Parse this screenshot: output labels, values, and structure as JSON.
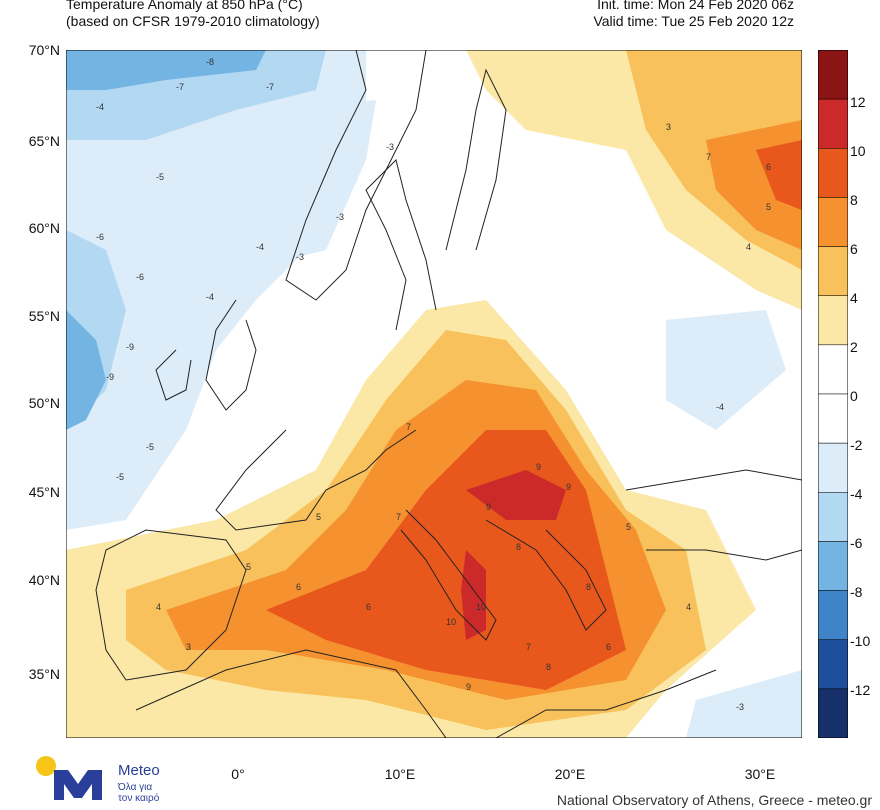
{
  "header": {
    "title_line1": "Temperature Anomaly at 850 hPa (°C)",
    "title_line2": "(based on CFSR 1979-2010 climatology)",
    "init_time": "Init. time: Mon 24 Feb 2020 06z",
    "valid_time": "Valid time: Tue 25 Feb 2020 12z"
  },
  "map": {
    "lat_labels": [
      "70°N",
      "65°N",
      "60°N",
      "55°N",
      "50°N",
      "45°N",
      "40°N",
      "35°N"
    ],
    "lon_labels": [
      "0°",
      "10°E",
      "20°E",
      "30°E"
    ]
  },
  "colorbar": {
    "labels": [
      "12",
      "10",
      "8",
      "6",
      "4",
      "2",
      "0",
      "-2",
      "-4",
      "-6",
      "-8",
      "-10",
      "-12"
    ],
    "colors": [
      "#8b1414",
      "#cc2a2a",
      "#e8581c",
      "#f5922f",
      "#f9c15b",
      "#fbe8a6",
      "#ffffff",
      "#ffffff",
      "#dcecf8",
      "#b2d8f2",
      "#74b4e3",
      "#3f84c8",
      "#1d4f9c",
      "#16306a"
    ]
  },
  "logo": {
    "brand": "Meteo",
    "tagline_line1": "Όλα για",
    "tagline_line2": "τον καιρό"
  },
  "footer": {
    "credit": "National Observatory of Athens, Greece - meteo.gr"
  },
  "contour_numbers": {
    "warm": [
      "9",
      "9",
      "9",
      "10",
      "10",
      "8",
      "8",
      "7",
      "7",
      "6",
      "6",
      "5",
      "5",
      "4",
      "3",
      "9",
      "8",
      "7",
      "6",
      "5",
      "4",
      "3",
      "7",
      "6",
      "5",
      "4"
    ],
    "cold": [
      "-9",
      "-9",
      "-8",
      "-7",
      "-7",
      "-6",
      "-6",
      "-5",
      "-5",
      "-4",
      "-4",
      "-3",
      "-3",
      "-3",
      "-4",
      "-5",
      "-4",
      "-3"
    ]
  }
}
